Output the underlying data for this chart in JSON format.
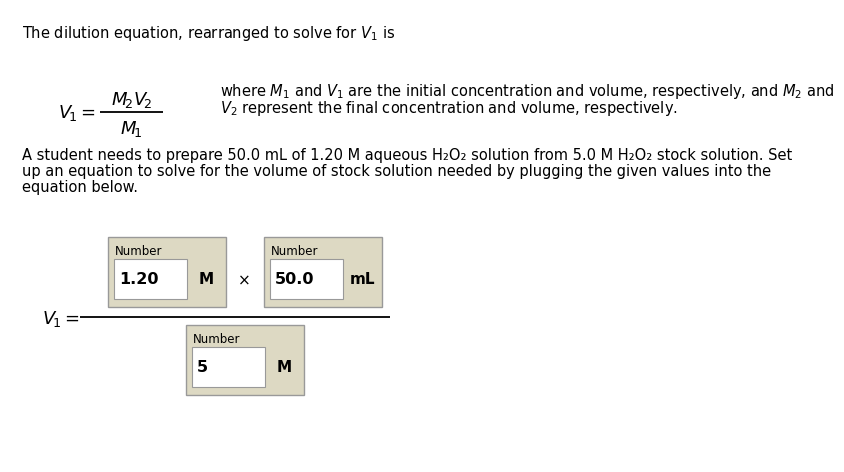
{
  "bg_color": "#ffffff",
  "title_text": "The dilution equation, rearranged to solve for $V_1$ is",
  "where_text_line1": "where $M_1$ and $V_1$ are the initial concentration and volume, respectively, and $M_2$ and",
  "where_text_line2": "$V_2$ represent the final concentration and volume, respectively.",
  "para_line1": "A student needs to prepare 50.0 mL of 1.20 M aqueous H₂O₂ solution from 5.0 M H₂O₂ stock solution. Set",
  "para_line2": "up an equation to solve for the volume of stock solution needed by plugging the given values into the",
  "para_line3": "equation below.",
  "box1_label": "Number",
  "box1_value": "1.20",
  "box1_unit": "M",
  "box2_label": "Number",
  "box2_value": "50.0",
  "box2_unit": "mL",
  "box3_label": "Number",
  "box3_value": "5",
  "box3_unit": "M",
  "multiply_sign": "×",
  "box_fill": "#ddd9c3",
  "box_inner_fill": "#ffffff",
  "box_edge": "#999999",
  "font_size_main": 10.5,
  "font_size_box_label": 8.5,
  "font_size_box_value": 11.5,
  "font_size_formula": 12,
  "font_size_unit": 11
}
